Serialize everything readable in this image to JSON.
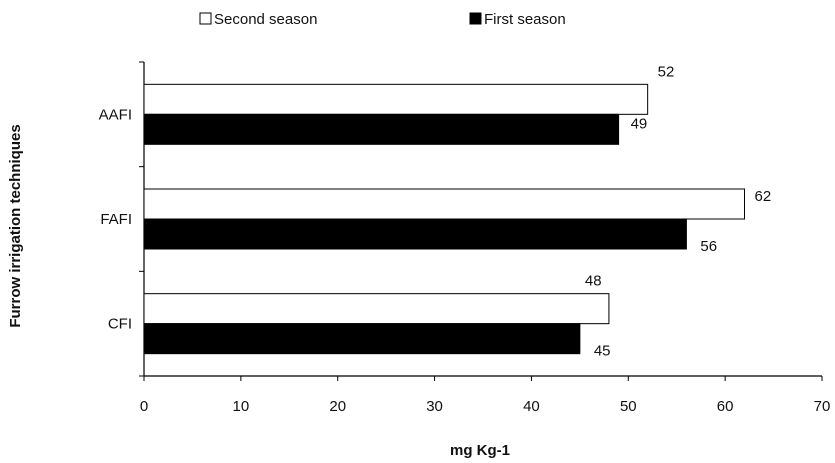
{
  "chart_data": {
    "type": "bar",
    "orientation": "horizontal",
    "categories": [
      "CFI",
      "FAFI",
      "AAFI"
    ],
    "series": [
      {
        "name": "Second season",
        "values": [
          48,
          62,
          52
        ],
        "color": "#ffffff"
      },
      {
        "name": "First season",
        "values": [
          45,
          56,
          49
        ],
        "color": "#000000"
      }
    ],
    "xlabel": "mg Kg-1",
    "ylabel": "Furrow irrigation techniques",
    "xlim": [
      0,
      70
    ],
    "xticks": [
      0,
      10,
      20,
      30,
      40,
      50,
      60,
      70
    ],
    "grid": false,
    "legend_position": "top"
  }
}
